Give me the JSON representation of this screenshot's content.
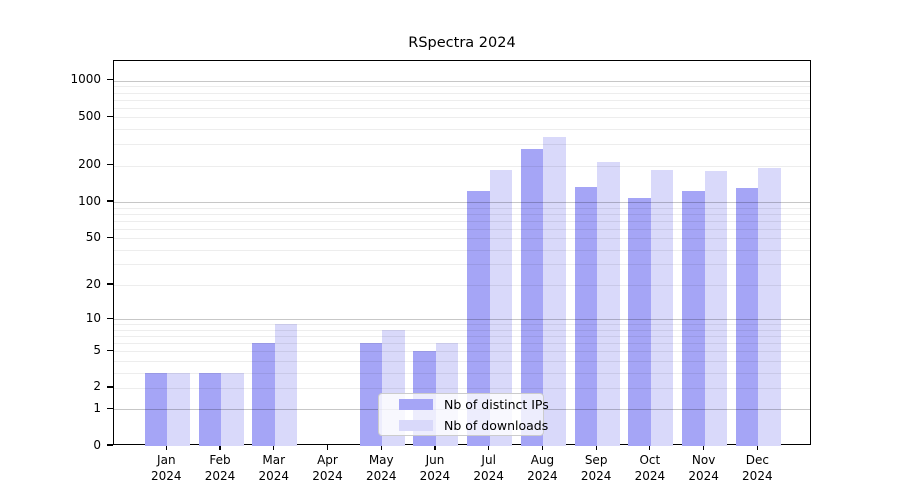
{
  "chart_data": {
    "type": "bar",
    "title": "RSpectra 2024",
    "categories": [
      "Jan 2024",
      "Feb 2024",
      "Mar 2024",
      "Apr 2024",
      "May 2024",
      "Jun 2024",
      "Jul 2024",
      "Aug 2024",
      "Sep 2024",
      "Oct 2024",
      "Nov 2024",
      "Dec 2024"
    ],
    "series": [
      {
        "name": "Nb of distinct IPs",
        "color": "#a5a5f6",
        "values": [
          3,
          3,
          6,
          0,
          6,
          5,
          124,
          274,
          133,
          108,
          124,
          130
        ]
      },
      {
        "name": "Nb of downloads",
        "color": "#d9d9fa",
        "values": [
          3,
          3,
          9,
          0,
          8,
          6,
          183,
          342,
          215,
          184,
          182,
          190
        ]
      }
    ],
    "xlabel": "",
    "ylabel": "",
    "y_axis": {
      "scale": "log1p",
      "ticks": [
        0,
        1,
        2,
        5,
        10,
        20,
        50,
        100,
        200,
        500,
        1000
      ],
      "max": 1455,
      "major_gridlines": [
        1,
        10,
        100,
        1000
      ],
      "minor_gridlines": [
        2,
        3,
        4,
        5,
        6,
        7,
        8,
        9,
        20,
        30,
        40,
        50,
        60,
        70,
        80,
        90,
        200,
        300,
        400,
        500,
        600,
        700,
        800,
        900
      ]
    },
    "grid": "on",
    "legend": {
      "position": "lower-center",
      "entries": [
        "Nb of distinct IPs",
        "Nb of downloads"
      ]
    }
  }
}
